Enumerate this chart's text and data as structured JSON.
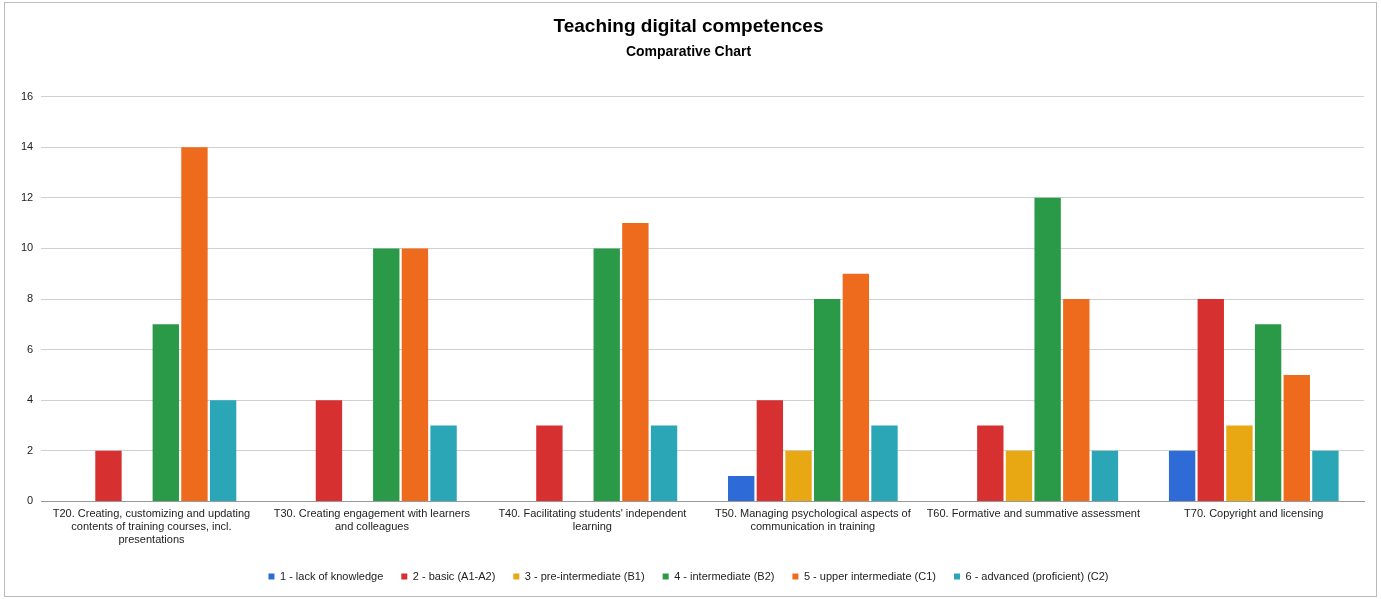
{
  "chart_data": {
    "type": "bar",
    "title": "Teaching digital competences",
    "subtitle": "Comparative Chart",
    "categories": [
      "T20. Creating, customizing and updating contents of training courses, incl. presentations",
      "T30. Creating engagement with learners and colleagues",
      "T40. Facilitating students' independent learning",
      "T50. Managing psychological aspects of communication in training",
      "T60. Formative and summative assessment",
      "T70. Copyright and licensing"
    ],
    "series": [
      {
        "name": "1 - lack of knowledge",
        "color": "#2e6bd6",
        "values": [
          0,
          0,
          0,
          1,
          0,
          2
        ]
      },
      {
        "name": "2 - basic (A1-A2)",
        "color": "#d63030",
        "values": [
          2,
          4,
          3,
          4,
          3,
          8
        ]
      },
      {
        "name": "3 - pre-intermediate (B1)",
        "color": "#e8a814",
        "values": [
          0,
          0,
          0,
          2,
          2,
          3
        ]
      },
      {
        "name": "4 - intermediate (B2)",
        "color": "#2b9a48",
        "values": [
          7,
          10,
          10,
          8,
          12,
          7
        ]
      },
      {
        "name": "5 - upper intermediate (C1)",
        "color": "#ee6a1c",
        "values": [
          14,
          10,
          11,
          9,
          8,
          5
        ]
      },
      {
        "name": "6 - advanced (proficient) (C2)",
        "color": "#2aa6b6",
        "values": [
          4,
          3,
          3,
          3,
          2,
          2
        ]
      }
    ],
    "ylim": [
      0,
      16
    ],
    "yticks": [
      0,
      2,
      4,
      6,
      8,
      10,
      12,
      14,
      16
    ],
    "grid": "y",
    "legend": "bottom"
  }
}
